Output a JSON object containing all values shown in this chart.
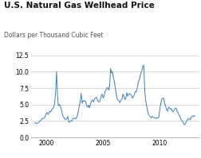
{
  "title": "U.S. Natural Gas Wellhead Price",
  "subtitle": "Dollars per Thousand Cubic Feet",
  "line_color": "#3a7ebf",
  "background_color": "#ffffff",
  "xlim": [
    1998.7,
    2013.5
  ],
  "ylim": [
    0.0,
    12.5
  ],
  "yticks": [
    0.0,
    2.5,
    5.0,
    7.5,
    10.0,
    12.5
  ],
  "xticks": [
    2000,
    2005,
    2010
  ],
  "title_fontsize": 7.5,
  "subtitle_fontsize": 5.5,
  "tick_fontsize": 5.5,
  "series": [
    [
      1999.0,
      2.27
    ],
    [
      1999.08,
      2.2
    ],
    [
      1999.17,
      2.1
    ],
    [
      1999.25,
      2.18
    ],
    [
      1999.33,
      2.28
    ],
    [
      1999.42,
      2.4
    ],
    [
      1999.5,
      2.6
    ],
    [
      1999.58,
      2.65
    ],
    [
      1999.67,
      2.9
    ],
    [
      1999.75,
      2.85
    ],
    [
      1999.83,
      3.0
    ],
    [
      1999.92,
      3.2
    ],
    [
      2000.0,
      3.6
    ],
    [
      2000.08,
      3.8
    ],
    [
      2000.17,
      3.5
    ],
    [
      2000.25,
      3.68
    ],
    [
      2000.33,
      4.0
    ],
    [
      2000.42,
      3.9
    ],
    [
      2000.5,
      4.2
    ],
    [
      2000.58,
      4.4
    ],
    [
      2000.67,
      4.6
    ],
    [
      2000.75,
      5.2
    ],
    [
      2000.83,
      6.6
    ],
    [
      2000.92,
      10.0
    ],
    [
      2001.0,
      6.6
    ],
    [
      2001.08,
      4.8
    ],
    [
      2001.17,
      5.0
    ],
    [
      2001.25,
      4.8
    ],
    [
      2001.33,
      4.3
    ],
    [
      2001.42,
      3.6
    ],
    [
      2001.5,
      3.2
    ],
    [
      2001.58,
      3.0
    ],
    [
      2001.67,
      2.8
    ],
    [
      2001.75,
      2.7
    ],
    [
      2001.83,
      2.9
    ],
    [
      2001.92,
      3.2
    ],
    [
      2002.0,
      2.3
    ],
    [
      2002.08,
      2.4
    ],
    [
      2002.17,
      2.55
    ],
    [
      2002.25,
      2.5
    ],
    [
      2002.33,
      2.8
    ],
    [
      2002.42,
      2.9
    ],
    [
      2002.5,
      2.95
    ],
    [
      2002.58,
      2.8
    ],
    [
      2002.67,
      3.0
    ],
    [
      2002.75,
      3.3
    ],
    [
      2002.83,
      4.0
    ],
    [
      2002.92,
      4.8
    ],
    [
      2003.0,
      5.5
    ],
    [
      2003.08,
      6.7
    ],
    [
      2003.17,
      5.2
    ],
    [
      2003.25,
      5.6
    ],
    [
      2003.33,
      5.5
    ],
    [
      2003.42,
      5.6
    ],
    [
      2003.5,
      5.3
    ],
    [
      2003.58,
      4.8
    ],
    [
      2003.67,
      4.6
    ],
    [
      2003.75,
      4.9
    ],
    [
      2003.83,
      4.5
    ],
    [
      2003.92,
      5.2
    ],
    [
      2004.0,
      5.6
    ],
    [
      2004.08,
      5.7
    ],
    [
      2004.17,
      5.4
    ],
    [
      2004.25,
      5.9
    ],
    [
      2004.33,
      6.0
    ],
    [
      2004.42,
      6.1
    ],
    [
      2004.5,
      5.8
    ],
    [
      2004.58,
      5.5
    ],
    [
      2004.67,
      5.4
    ],
    [
      2004.75,
      5.6
    ],
    [
      2004.83,
      6.2
    ],
    [
      2004.92,
      6.6
    ],
    [
      2005.0,
      6.0
    ],
    [
      2005.08,
      6.2
    ],
    [
      2005.17,
      6.9
    ],
    [
      2005.25,
      7.2
    ],
    [
      2005.33,
      7.5
    ],
    [
      2005.42,
      7.6
    ],
    [
      2005.5,
      7.2
    ],
    [
      2005.58,
      7.8
    ],
    [
      2005.67,
      10.5
    ],
    [
      2005.75,
      9.8
    ],
    [
      2005.83,
      10.0
    ],
    [
      2005.92,
      9.0
    ],
    [
      2006.0,
      8.5
    ],
    [
      2006.08,
      7.5
    ],
    [
      2006.17,
      6.5
    ],
    [
      2006.25,
      5.8
    ],
    [
      2006.33,
      5.7
    ],
    [
      2006.42,
      5.5
    ],
    [
      2006.5,
      5.3
    ],
    [
      2006.58,
      5.7
    ],
    [
      2006.67,
      5.8
    ],
    [
      2006.75,
      6.6
    ],
    [
      2006.83,
      6.3
    ],
    [
      2006.92,
      5.8
    ],
    [
      2007.0,
      5.9
    ],
    [
      2007.08,
      6.8
    ],
    [
      2007.17,
      6.3
    ],
    [
      2007.25,
      6.5
    ],
    [
      2007.33,
      6.7
    ],
    [
      2007.42,
      6.5
    ],
    [
      2007.5,
      6.4
    ],
    [
      2007.58,
      6.0
    ],
    [
      2007.67,
      6.2
    ],
    [
      2007.75,
      6.5
    ],
    [
      2007.83,
      7.0
    ],
    [
      2007.92,
      6.9
    ],
    [
      2008.0,
      7.5
    ],
    [
      2008.08,
      8.2
    ],
    [
      2008.17,
      8.8
    ],
    [
      2008.25,
      9.2
    ],
    [
      2008.33,
      9.8
    ],
    [
      2008.42,
      10.2
    ],
    [
      2008.5,
      10.8
    ],
    [
      2008.58,
      11.0
    ],
    [
      2008.67,
      7.0
    ],
    [
      2008.75,
      5.6
    ],
    [
      2008.83,
      4.8
    ],
    [
      2008.92,
      4.0
    ],
    [
      2009.0,
      3.5
    ],
    [
      2009.08,
      3.3
    ],
    [
      2009.17,
      3.1
    ],
    [
      2009.25,
      3.0
    ],
    [
      2009.33,
      3.2
    ],
    [
      2009.42,
      3.1
    ],
    [
      2009.5,
      3.0
    ],
    [
      2009.58,
      2.9
    ],
    [
      2009.67,
      3.0
    ],
    [
      2009.75,
      2.9
    ],
    [
      2009.83,
      3.0
    ],
    [
      2009.92,
      3.2
    ],
    [
      2010.0,
      4.5
    ],
    [
      2010.08,
      5.2
    ],
    [
      2010.17,
      5.8
    ],
    [
      2010.25,
      6.0
    ],
    [
      2010.33,
      5.9
    ],
    [
      2010.42,
      5.2
    ],
    [
      2010.5,
      4.8
    ],
    [
      2010.58,
      4.2
    ],
    [
      2010.67,
      4.0
    ],
    [
      2010.75,
      4.6
    ],
    [
      2010.83,
      4.5
    ],
    [
      2010.92,
      4.3
    ],
    [
      2011.0,
      4.4
    ],
    [
      2011.08,
      4.0
    ],
    [
      2011.17,
      3.9
    ],
    [
      2011.25,
      4.2
    ],
    [
      2011.33,
      4.4
    ],
    [
      2011.42,
      4.5
    ],
    [
      2011.5,
      4.0
    ],
    [
      2011.58,
      3.8
    ],
    [
      2011.67,
      3.4
    ],
    [
      2011.75,
      3.2
    ],
    [
      2011.83,
      2.8
    ],
    [
      2011.92,
      2.6
    ],
    [
      2012.0,
      2.4
    ],
    [
      2012.08,
      2.1
    ],
    [
      2012.17,
      1.95
    ],
    [
      2012.25,
      2.1
    ],
    [
      2012.33,
      2.5
    ],
    [
      2012.42,
      2.7
    ],
    [
      2012.5,
      2.9
    ],
    [
      2012.58,
      2.8
    ],
    [
      2012.67,
      2.7
    ],
    [
      2012.75,
      3.1
    ],
    [
      2012.83,
      3.2
    ],
    [
      2012.92,
      3.3
    ],
    [
      2013.0,
      3.2
    ],
    [
      2013.08,
      3.3
    ]
  ]
}
